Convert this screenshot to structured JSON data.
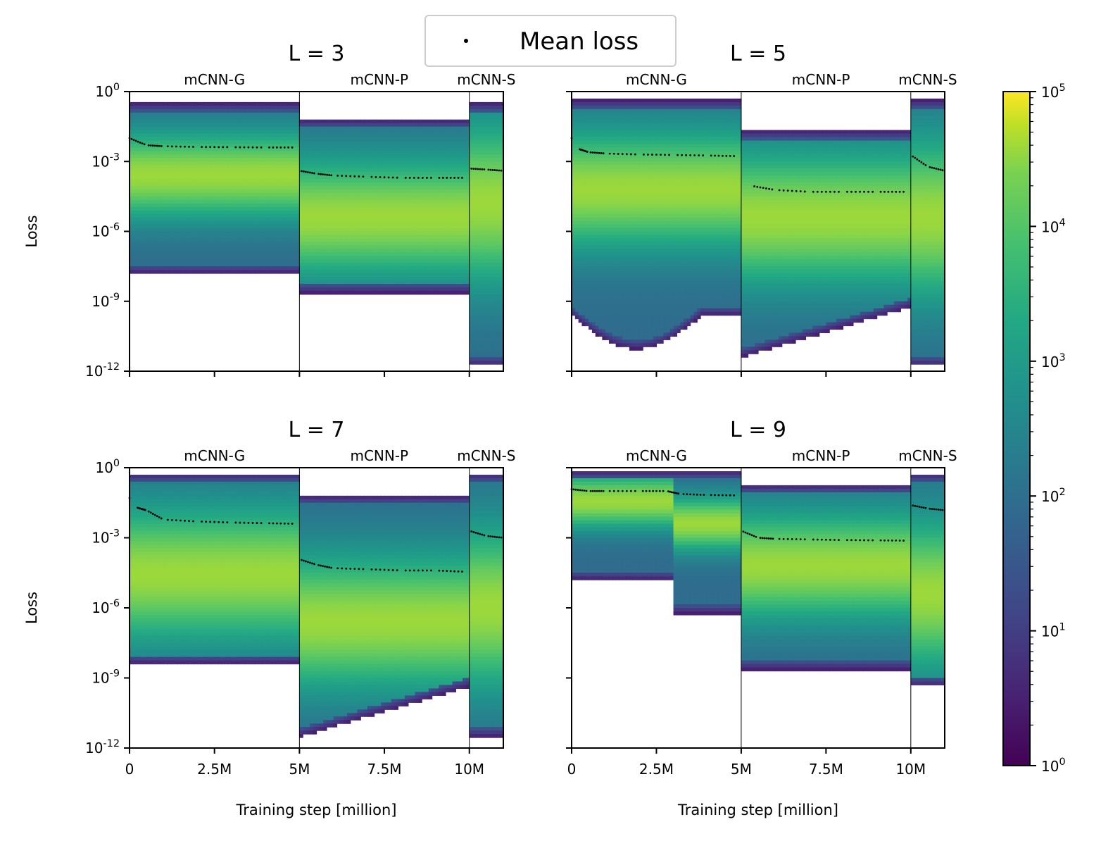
{
  "legend": {
    "label": "Mean loss",
    "marker": "dot"
  },
  "colorbar": {
    "scale": "log",
    "colormap": "viridis",
    "range": [
      1,
      100000
    ],
    "tick_labels": [
      [
        "10",
        "0"
      ],
      [
        "10",
        "1"
      ],
      [
        "10",
        "2"
      ],
      [
        "10",
        "3"
      ],
      [
        "10",
        "4"
      ],
      [
        "10",
        "5"
      ]
    ]
  },
  "section_labels": [
    "mCNN-G",
    "mCNN-P",
    "mCNN-S"
  ],
  "y_tick_labels": [
    [
      "10",
      "0"
    ],
    [
      "10",
      "-3"
    ],
    [
      "10",
      "-6"
    ],
    [
      "10",
      "-9"
    ],
    [
      "10",
      "-12"
    ]
  ],
  "x_tick_labels": [
    "0",
    "2.5M",
    "5M",
    "7.5M",
    "10M"
  ],
  "chart_data": [
    {
      "type": "heatmap",
      "title": "L = 3",
      "xlabel": "",
      "ylabel": "Loss",
      "xlim": [
        0,
        11
      ],
      "ylim": [
        1e-12,
        1
      ],
      "yscale": "log",
      "boundaries_million": [
        5,
        10
      ],
      "mean_loss": {
        "x": [
          0,
          0.5,
          1,
          2,
          3,
          4,
          4.9,
          5,
          5.5,
          6,
          7,
          8,
          9,
          9.9,
          10,
          10.5,
          11
        ],
        "y": [
          0.01,
          0.005,
          0.0045,
          0.0042,
          0.0041,
          0.004,
          0.004,
          0.0004,
          0.0003,
          0.00025,
          0.00022,
          0.0002,
          0.0002,
          0.0002,
          0.0005,
          0.00045,
          0.0004
        ]
      }
    },
    {
      "type": "heatmap",
      "title": "L = 5",
      "xlabel": "",
      "ylabel": "",
      "xlim": [
        0,
        11
      ],
      "ylim": [
        1e-12,
        1
      ],
      "yscale": "log",
      "boundaries_million": [
        5,
        10
      ],
      "mean_loss": {
        "x": [
          0,
          0.2,
          0.5,
          1,
          2,
          3,
          4,
          4.9,
          5,
          5.3,
          6,
          7,
          8,
          9,
          9.9,
          10,
          10.5,
          11
        ],
        "y": [
          0.01,
          0.0035,
          0.0025,
          0.0022,
          0.002,
          0.0019,
          0.0018,
          0.0017,
          0.0003,
          9e-05,
          6e-05,
          5e-05,
          5e-05,
          5e-05,
          5e-05,
          0.0019,
          0.0006,
          0.0004
        ]
      }
    },
    {
      "type": "heatmap",
      "title": "L = 7",
      "xlabel": "Training step [million]",
      "ylabel": "Loss",
      "xlim": [
        0,
        11
      ],
      "ylim": [
        1e-12,
        1
      ],
      "yscale": "log",
      "boundaries_million": [
        5,
        10
      ],
      "mean_loss": {
        "x": [
          0,
          0.2,
          0.5,
          1,
          2,
          3,
          4,
          4.9,
          5,
          5.5,
          6,
          7,
          8,
          9,
          9.9,
          10,
          10.5,
          11
        ],
        "y": [
          0.05,
          0.02,
          0.015,
          0.006,
          0.005,
          0.0045,
          0.0042,
          0.004,
          0.00012,
          7e-05,
          5e-05,
          4.5e-05,
          4e-05,
          4e-05,
          3.5e-05,
          0.002,
          0.0012,
          0.001
        ]
      }
    },
    {
      "type": "heatmap",
      "title": "L = 9",
      "xlabel": "Training step [million]",
      "ylabel": "",
      "xlim": [
        0,
        11
      ],
      "ylim": [
        1e-12,
        1
      ],
      "yscale": "log",
      "boundaries_million": [
        5,
        10
      ],
      "mean_loss": {
        "x": [
          0,
          0.5,
          1,
          2,
          2.8,
          3.2,
          4,
          4.9,
          5,
          5.5,
          6,
          7,
          8,
          9,
          9.9,
          10,
          10.5,
          11
        ],
        "y": [
          0.12,
          0.1,
          0.1,
          0.1,
          0.1,
          0.075,
          0.068,
          0.065,
          0.002,
          0.001,
          0.0009,
          0.00085,
          0.0008,
          0.00078,
          0.00075,
          0.025,
          0.018,
          0.015
        ]
      }
    }
  ]
}
